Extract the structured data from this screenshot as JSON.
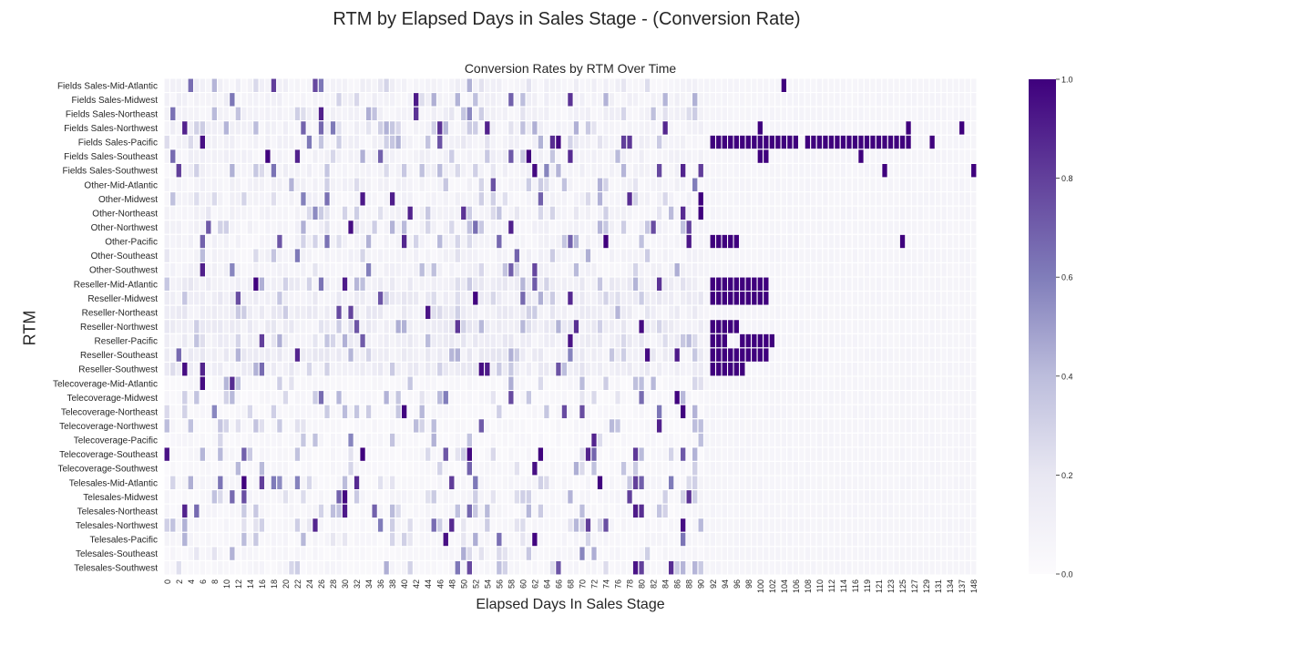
{
  "chart_data": {
    "type": "heatmap",
    "title": "RTM by Elapsed Days in Sales Stage - (Conversion Rate)",
    "subtitle": "Conversion Rates by RTM Over Time",
    "xlabel": "Elapsed Days In Sales Stage",
    "ylabel": "RTM",
    "colormap": "Purples",
    "colorbar": {
      "min": 0.0,
      "max": 1.0,
      "ticks": [
        "0.0",
        "0.2",
        "0.4",
        "0.6",
        "0.8",
        "1.0"
      ]
    },
    "rows": [
      "Fields Sales-Mid-Atlantic",
      "Fields Sales-Midwest",
      "Fields Sales-Northeast",
      "Fields Sales-Northwest",
      "Fields Sales-Pacific",
      "Fields Sales-Southeast",
      "Fields Sales-Southwest",
      "Other-Mid-Atlantic",
      "Other-Midwest",
      "Other-Northeast",
      "Other-Northwest",
      "Other-Pacific",
      "Other-Southeast",
      "Other-Southwest",
      "Reseller-Mid-Atlantic",
      "Reseller-Midwest",
      "Reseller-Northeast",
      "Reseller-Northwest",
      "Reseller-Pacific",
      "Reseller-Southeast",
      "Reseller-Southwest",
      "Telecoverage-Mid-Atlantic",
      "Telecoverage-Midwest",
      "Telecoverage-Northeast",
      "Telecoverage-Northwest",
      "Telecoverage-Pacific",
      "Telecoverage-Southeast",
      "Telecoverage-Southwest",
      "Telesales-Mid-Atlantic",
      "Telesales-Midwest",
      "Telesales-Northeast",
      "Telesales-Northwest",
      "Telesales-Pacific",
      "Telesales-Southeast",
      "Telesales-Southwest"
    ],
    "x_tick_labels": [
      "0",
      "2",
      "4",
      "6",
      "8",
      "10",
      "12",
      "14",
      "16",
      "18",
      "20",
      "22",
      "24",
      "26",
      "28",
      "30",
      "32",
      "34",
      "36",
      "38",
      "40",
      "42",
      "44",
      "46",
      "48",
      "50",
      "52",
      "54",
      "56",
      "58",
      "60",
      "62",
      "64",
      "66",
      "68",
      "70",
      "72",
      "74",
      "76",
      "78",
      "80",
      "82",
      "84",
      "86",
      "88",
      "90",
      "92",
      "94",
      "96",
      "98",
      "100",
      "102",
      "104",
      "106",
      "108",
      "110",
      "112",
      "114",
      "116",
      "119",
      "121",
      "123",
      "125",
      "127",
      "129",
      "131",
      "134",
      "137",
      "148"
    ],
    "columns": [
      0,
      1,
      2,
      3,
      4,
      5,
      6,
      7,
      8,
      9,
      10,
      11,
      12,
      13,
      14,
      15,
      16,
      17,
      18,
      19,
      20,
      21,
      22,
      23,
      24,
      25,
      26,
      27,
      28,
      29,
      30,
      31,
      32,
      33,
      34,
      35,
      36,
      37,
      38,
      39,
      40,
      41,
      42,
      43,
      44,
      45,
      46,
      47,
      48,
      49,
      50,
      51,
      52,
      53,
      54,
      55,
      56,
      57,
      58,
      59,
      60,
      61,
      62,
      63,
      64,
      65,
      66,
      67,
      68,
      69,
      70,
      71,
      72,
      73,
      74,
      75,
      76,
      77,
      78,
      79,
      80,
      81,
      82,
      83,
      84,
      85,
      86,
      87,
      88,
      89,
      90,
      91,
      92,
      93,
      94,
      95,
      96,
      97,
      98,
      99,
      100,
      101,
      102,
      103,
      104,
      105,
      106,
      107,
      108,
      109,
      110,
      111,
      112,
      113,
      114,
      115,
      116,
      118,
      119,
      120,
      121,
      122,
      123,
      124,
      125,
      126,
      127,
      128,
      129,
      130,
      131,
      133,
      134,
      136,
      137,
      142,
      148
    ],
    "baseline_by_row_group": {
      "Fields Sales": 0.1,
      "Other": 0.09,
      "Reseller": 0.15,
      "Telecoverage": 0.05,
      "Telesales": 0.06
    },
    "notable_cells": [
      {
        "row": "Fields Sales-Mid-Atlantic",
        "day": 104,
        "value": 1.0
      },
      {
        "row": "Fields Sales-Northwest",
        "day": 100,
        "value": 1.0
      },
      {
        "row": "Fields Sales-Northwest",
        "day": 126,
        "value": 1.0
      },
      {
        "row": "Fields Sales-Northwest",
        "day": 137,
        "value": 1.0
      },
      {
        "row": "Fields Sales-Pacific",
        "day_range": [
          92,
          106
        ],
        "value": 1.0
      },
      {
        "row": "Fields Sales-Pacific",
        "day_range": [
          108,
          126
        ],
        "value": 1.0
      },
      {
        "row": "Fields Sales-Pacific",
        "day": 130,
        "value": 1.0
      },
      {
        "row": "Fields Sales-Southeast",
        "day": 100,
        "value": 1.0
      },
      {
        "row": "Fields Sales-Southeast",
        "day": 101,
        "value": 1.0
      },
      {
        "row": "Fields Sales-Southeast",
        "day": 118,
        "value": 1.0
      },
      {
        "row": "Fields Sales-Southwest",
        "day": 122,
        "value": 1.0
      },
      {
        "row": "Fields Sales-Southwest",
        "day": 148,
        "value": 1.0
      },
      {
        "row": "Other-Midwest",
        "day": 90,
        "value": 1.0
      },
      {
        "row": "Other-Northeast",
        "day": 90,
        "value": 1.0
      },
      {
        "row": "Other-Pacific",
        "day_range": [
          92,
          96
        ],
        "value": 1.0
      },
      {
        "row": "Other-Pacific",
        "day": 125,
        "value": 1.0
      },
      {
        "row": "Reseller-Mid-Atlantic",
        "day_range": [
          92,
          101
        ],
        "value": 1.0
      },
      {
        "row": "Reseller-Midwest",
        "day_range": [
          92,
          101
        ],
        "value": 1.0
      },
      {
        "row": "Reseller-Northwest",
        "day_range": [
          92,
          96
        ],
        "value": 1.0
      },
      {
        "row": "Reseller-Pacific",
        "day_range": [
          92,
          94
        ],
        "value": 1.0
      },
      {
        "row": "Reseller-Pacific",
        "day_range": [
          97,
          102
        ],
        "value": 1.0
      },
      {
        "row": "Reseller-Southeast",
        "day_range": [
          92,
          101
        ],
        "value": 1.0
      },
      {
        "row": "Reseller-Southwest",
        "day_range": [
          92,
          97
        ],
        "value": 1.0
      }
    ],
    "grid": false,
    "legend": "colorbar-right"
  }
}
